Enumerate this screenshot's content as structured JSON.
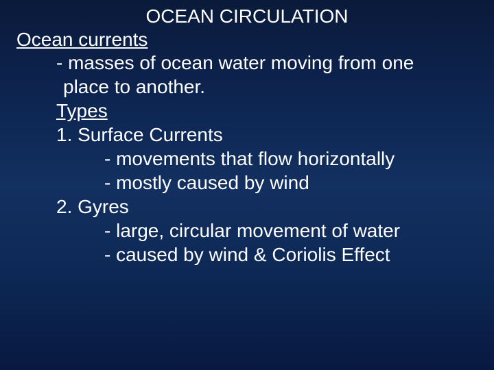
{
  "background_gradient": {
    "start": "#0a1a3a",
    "mid1": "#0d2450",
    "mid2": "#123060",
    "mid3": "#0d2855",
    "end": "#081840"
  },
  "text_color": "#ffffff",
  "font_family": "Arial",
  "title_fontsize": 28,
  "body_fontsize": 28,
  "title": "OCEAN CIRCULATION",
  "heading": "Ocean currents",
  "lines": {
    "def1": "- masses of ocean water moving from one",
    "def2": " place to another.",
    "types": "Types",
    "item1": "1. Surface Currents",
    "item1_a": "- movements that flow horizontally",
    "item1_b": "- mostly caused by wind",
    "item2": "2. Gyres",
    "item2_a": "- large, circular movement of water",
    "item2_b": "- caused by wind & Coriolis Effect"
  }
}
